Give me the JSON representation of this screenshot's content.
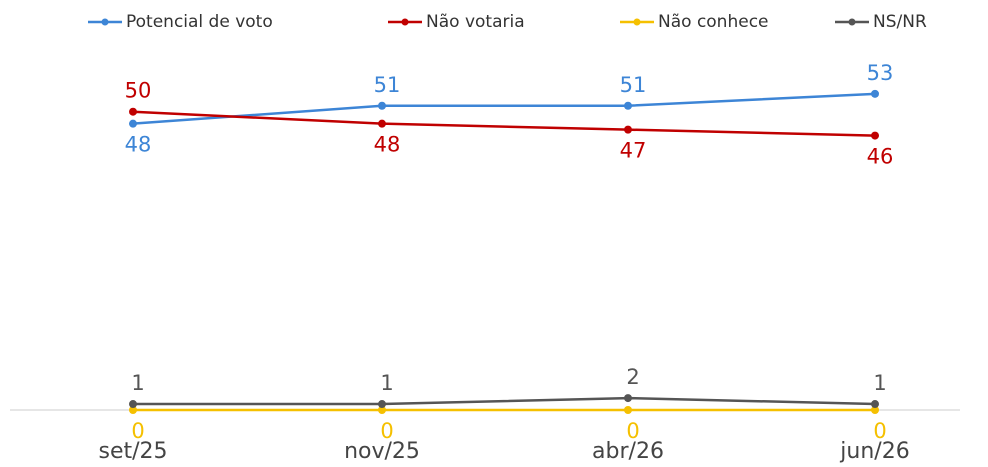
{
  "chart_data": {
    "type": "line",
    "x": [
      "set/25",
      "nov/25",
      "abr/26",
      "jun/26"
    ],
    "series": [
      {
        "name": "Potencial de voto",
        "color": "#3d85d6",
        "values": [
          48,
          51,
          51,
          53
        ]
      },
      {
        "name": "Não votaria",
        "color": "#c00000",
        "values": [
          50,
          48,
          47,
          46
        ]
      },
      {
        "name": "Não conhece",
        "color": "#f5c000",
        "values": [
          0,
          0,
          0,
          0
        ]
      },
      {
        "name": "NS/NR",
        "color": "#555555",
        "values": [
          1,
          1,
          2,
          1
        ]
      }
    ],
    "ylim": [
      0,
      58
    ],
    "legend": "top"
  }
}
